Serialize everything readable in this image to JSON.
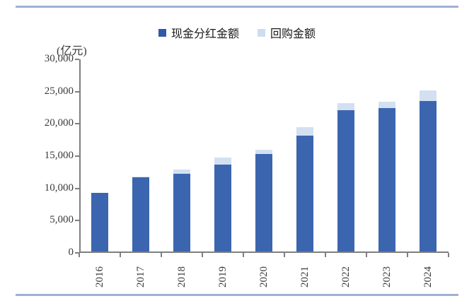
{
  "page": {
    "rule_color": "#9fb0d4",
    "axis_color": "#7f7f7f",
    "text_color": "#3a3a3a"
  },
  "chart_data": {
    "type": "bar",
    "stacked": true,
    "title": "",
    "unit_label": "(亿元)",
    "categories": [
      "2016",
      "2017",
      "2018",
      "2019",
      "2020",
      "2021",
      "2022",
      "2023",
      "2024"
    ],
    "series": [
      {
        "name": "现金分红金额",
        "color": "#3b65af",
        "legend_color": "#2f5aa8",
        "values": [
          9100,
          11500,
          12100,
          13500,
          15100,
          18000,
          21900,
          22200,
          23300
        ]
      },
      {
        "name": "回购金额",
        "color": "#d3e0f2",
        "legend_color": "#cdddf1",
        "values": [
          0,
          100,
          600,
          1100,
          700,
          1250,
          1050,
          1000,
          1700
        ]
      }
    ],
    "ylim": [
      0,
      30000
    ],
    "yticks": [
      0,
      5000,
      10000,
      15000,
      20000,
      25000,
      30000
    ],
    "ytick_labels": [
      "0",
      "5,000",
      "10,000",
      "15,000",
      "20,000",
      "25,000",
      "30,000"
    ],
    "legend_position": "top",
    "grid": false,
    "xlabel": "",
    "ylabel": ""
  }
}
